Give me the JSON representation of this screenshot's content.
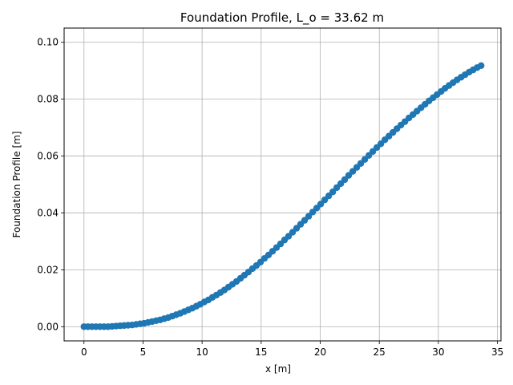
{
  "chart_data": {
    "type": "scatter",
    "title": "Foundation Profile, L_o = 33.62 m",
    "xlabel": "x [m]",
    "ylabel": "Foundation Profile [m]",
    "xlim": [
      -1.68,
      35.3
    ],
    "ylim": [
      -0.005,
      0.105
    ],
    "xticks": [
      0,
      5,
      10,
      15,
      20,
      25,
      30,
      35
    ],
    "xtick_labels": [
      "0",
      "5",
      "10",
      "15",
      "20",
      "25",
      "30",
      "35"
    ],
    "yticks": [
      0.0,
      0.02,
      0.04,
      0.06,
      0.08,
      0.1
    ],
    "ytick_labels": [
      "0.00",
      "0.02",
      "0.04",
      "0.06",
      "0.08",
      "0.10"
    ],
    "grid": true,
    "legend": "none",
    "marker_color": "#1f77b4",
    "x": [
      0.0,
      0.34,
      0.68,
      1.02,
      1.36,
      1.7,
      2.04,
      2.38,
      2.72,
      3.06,
      3.4,
      3.74,
      4.08,
      4.42,
      4.76,
      5.09,
      5.43,
      5.77,
      6.11,
      6.45,
      6.79,
      7.13,
      7.47,
      7.81,
      8.15,
      8.49,
      8.83,
      9.17,
      9.51,
      9.85,
      10.19,
      10.53,
      10.87,
      11.21,
      11.55,
      11.89,
      12.23,
      12.57,
      12.91,
      13.25,
      13.58,
      13.92,
      14.26,
      14.6,
      14.94,
      15.28,
      15.62,
      15.96,
      16.3,
      16.64,
      16.98,
      17.32,
      17.66,
      18.0,
      18.34,
      18.68,
      19.02,
      19.36,
      19.7,
      20.04,
      20.38,
      20.72,
      21.06,
      21.4,
      21.74,
      22.07,
      22.41,
      22.75,
      23.09,
      23.43,
      23.77,
      24.11,
      24.45,
      24.79,
      25.13,
      25.47,
      25.81,
      26.15,
      26.49,
      26.83,
      27.17,
      27.51,
      27.85,
      28.19,
      28.53,
      28.87,
      29.21,
      29.55,
      29.89,
      30.23,
      30.56,
      30.9,
      31.24,
      31.58,
      31.92,
      32.26,
      32.6,
      32.94,
      33.28,
      33.62
    ],
    "y": [
      0.0,
      0.0,
      0.0,
      0.0,
      0.0,
      0.0,
      0.0,
      0.0001,
      0.0002,
      0.0003,
      0.0004,
      0.0005,
      0.0006,
      0.0008,
      0.001,
      0.0012,
      0.0015,
      0.0018,
      0.0021,
      0.0024,
      0.0028,
      0.0032,
      0.0037,
      0.0042,
      0.0047,
      0.0053,
      0.0059,
      0.0065,
      0.0072,
      0.0079,
      0.0087,
      0.0094,
      0.0103,
      0.0111,
      0.012,
      0.0129,
      0.0139,
      0.0149,
      0.0159,
      0.017,
      0.0181,
      0.0192,
      0.0204,
      0.0215,
      0.0227,
      0.024,
      0.0252,
      0.0265,
      0.0278,
      0.0291,
      0.0305,
      0.0318,
      0.0332,
      0.0346,
      0.036,
      0.0374,
      0.0388,
      0.0403,
      0.0417,
      0.0431,
      0.0446,
      0.046,
      0.0474,
      0.0489,
      0.0503,
      0.0517,
      0.0532,
      0.0546,
      0.056,
      0.0574,
      0.0588,
      0.0602,
      0.0616,
      0.063,
      0.0643,
      0.0657,
      0.067,
      0.0683,
      0.0696,
      0.0709,
      0.0721,
      0.0734,
      0.0746,
      0.0758,
      0.077,
      0.0782,
      0.0794,
      0.0805,
      0.0816,
      0.0827,
      0.0838,
      0.0848,
      0.0858,
      0.0868,
      0.0877,
      0.0886,
      0.0895,
      0.0903,
      0.0911,
      0.0918
    ],
    "y_note": ""
  }
}
